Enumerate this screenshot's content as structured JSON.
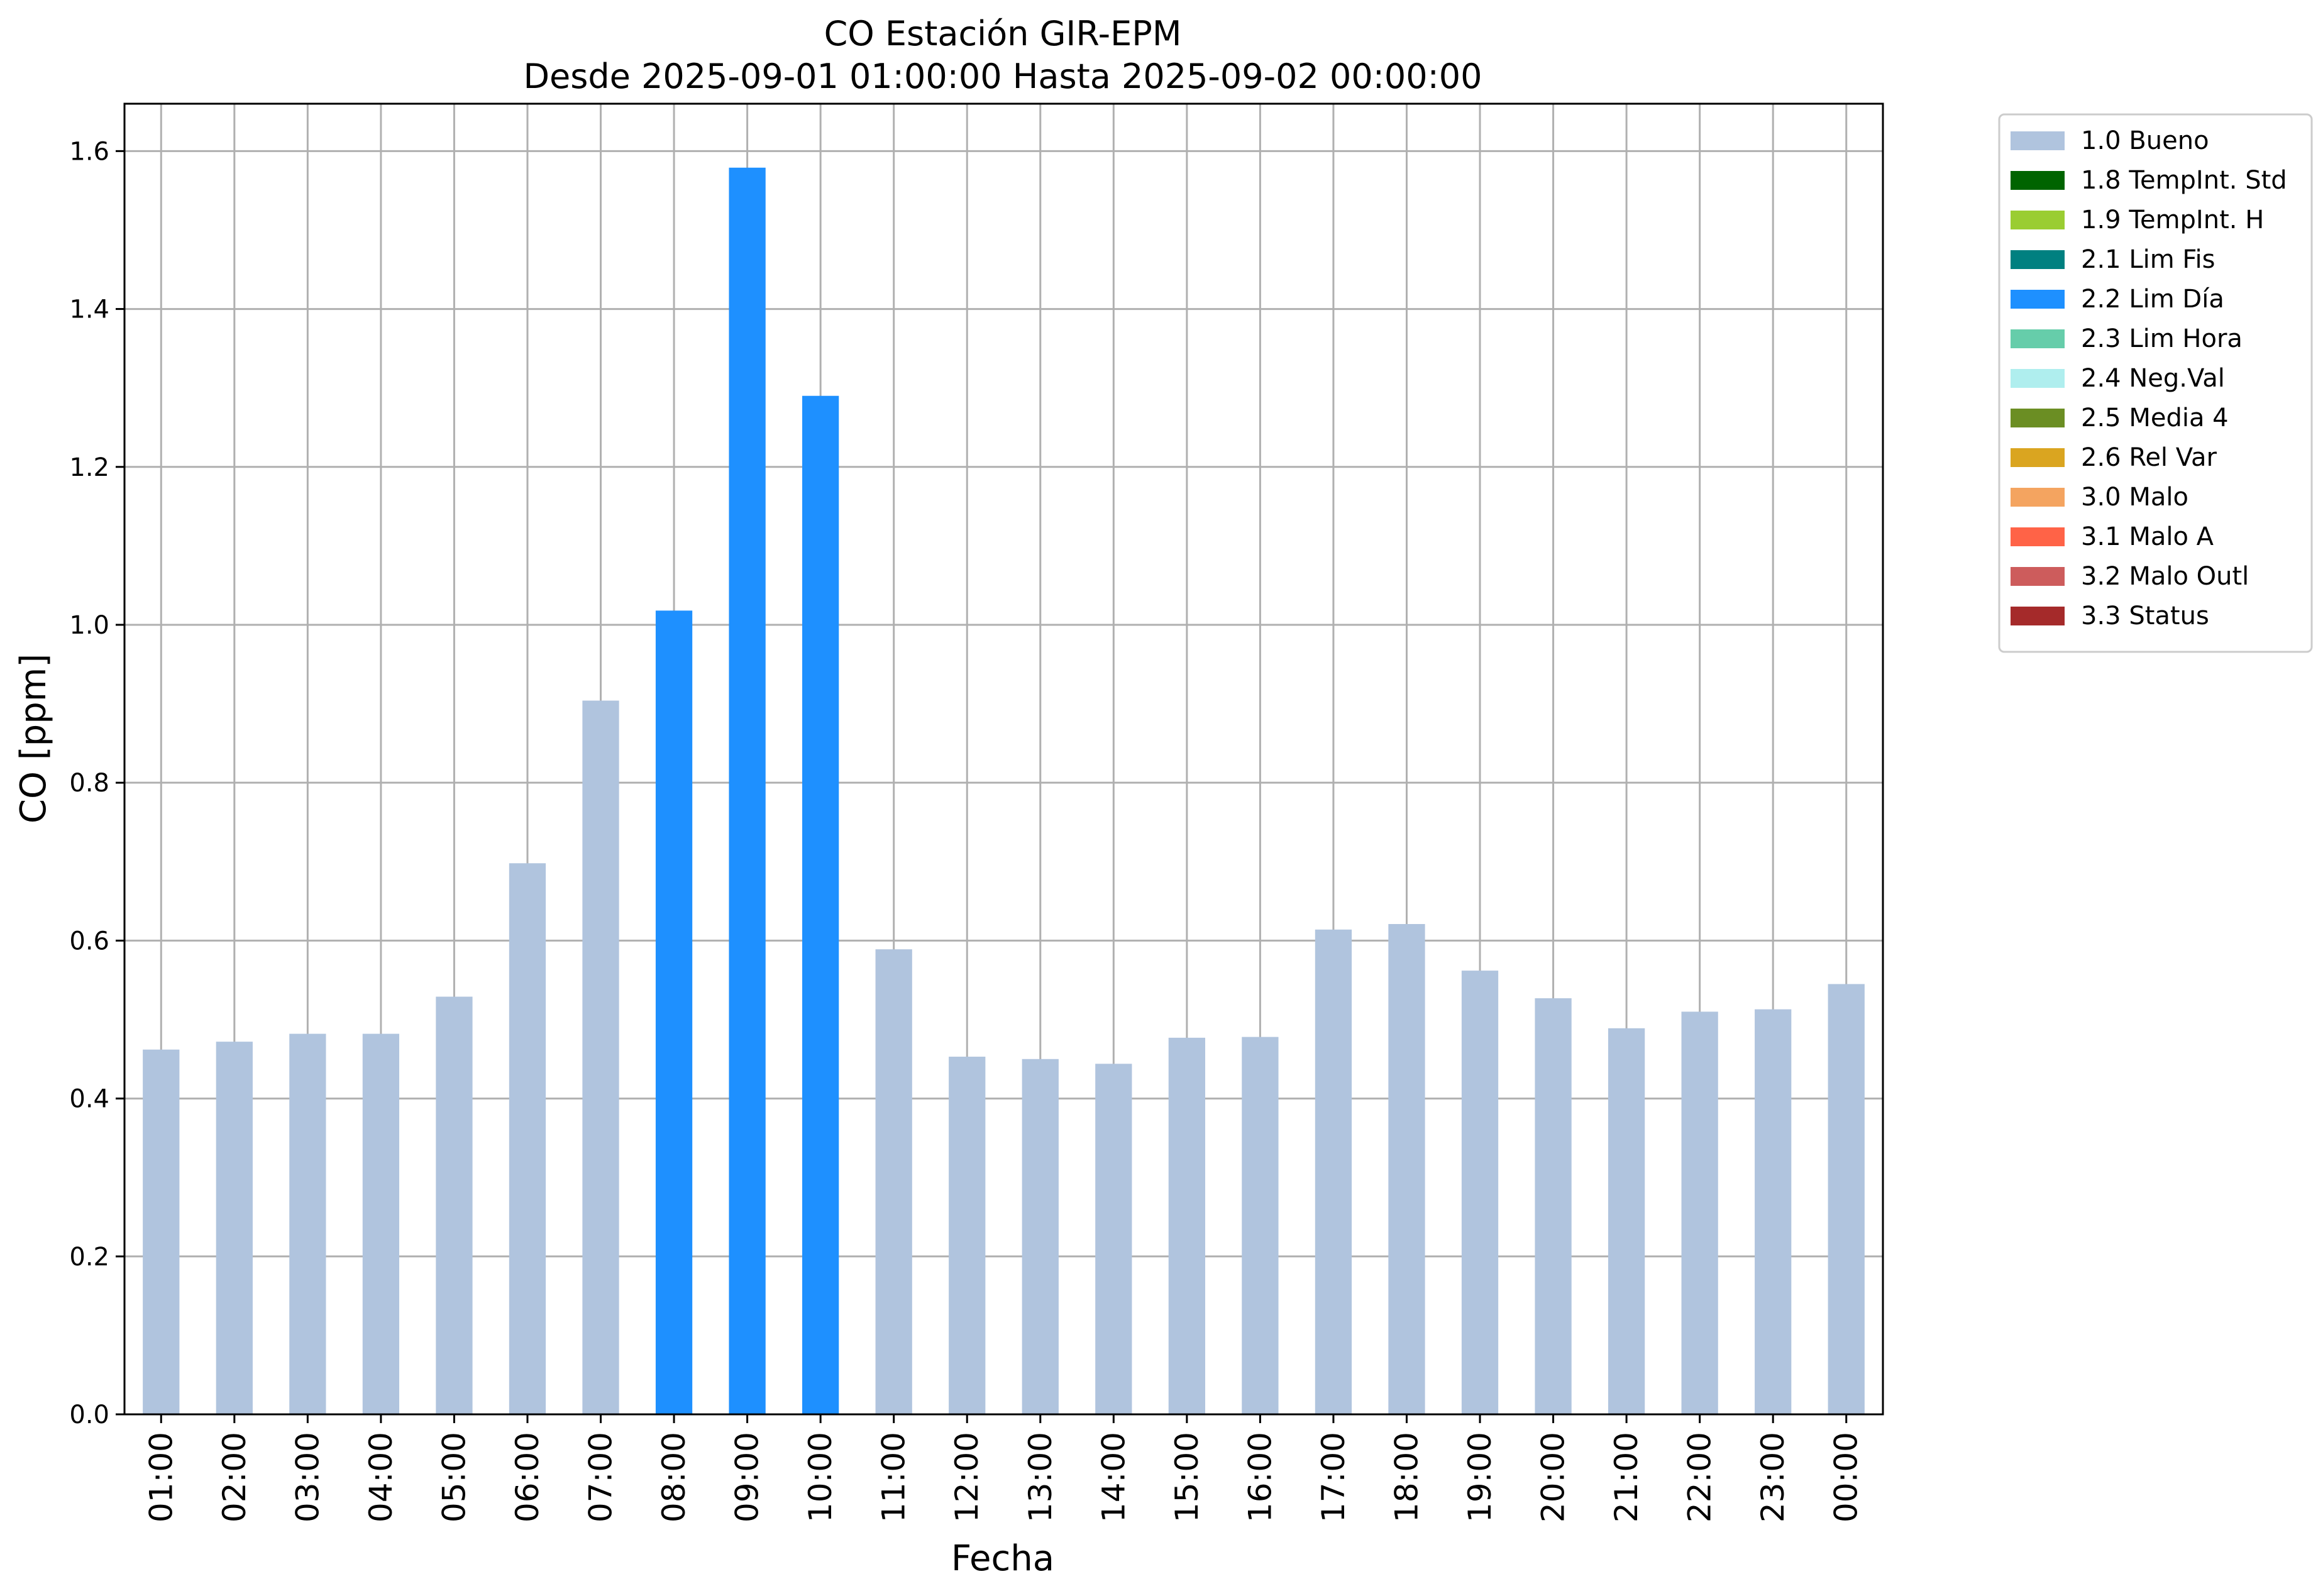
{
  "colors": {
    "background": "#ffffff",
    "grid": "#b0b0b0",
    "axis": "#000000"
  },
  "chart_data": {
    "type": "bar",
    "title": "CO Estación GIR-EPM",
    "subtitle": "Desde 2025-09-01 01:00:00 Hasta 2025-09-02 00:00:00",
    "xlabel": "Fecha",
    "ylabel": "CO [ppm]",
    "ylim": [
      0,
      1.66
    ],
    "yticks": [
      "0.0",
      "0.2",
      "0.4",
      "0.6",
      "0.8",
      "1.0",
      "1.2",
      "1.4",
      "1.6"
    ],
    "ytick_values": [
      0,
      0.2,
      0.4,
      0.6,
      0.8,
      1.0,
      1.2,
      1.4,
      1.6
    ],
    "grid": true,
    "legend_position": "outside top-right",
    "categories": [
      "01:00",
      "02:00",
      "03:00",
      "04:00",
      "05:00",
      "06:00",
      "07:00",
      "08:00",
      "09:00",
      "10:00",
      "11:00",
      "12:00",
      "13:00",
      "14:00",
      "15:00",
      "16:00",
      "17:00",
      "18:00",
      "19:00",
      "20:00",
      "21:00",
      "22:00",
      "23:00",
      "00:00"
    ],
    "values": [
      0.462,
      0.472,
      0.482,
      0.482,
      0.529,
      0.698,
      0.904,
      1.018,
      1.579,
      1.29,
      0.589,
      0.453,
      0.45,
      0.444,
      0.477,
      0.478,
      0.614,
      0.621,
      0.562,
      0.527,
      0.489,
      0.51,
      0.513,
      0.545
    ],
    "flags": [
      "1.0 Bueno",
      "1.0 Bueno",
      "1.0 Bueno",
      "1.0 Bueno",
      "1.0 Bueno",
      "1.0 Bueno",
      "1.0 Bueno",
      "2.2 Lim Día",
      "2.2 Lim Día",
      "2.2 Lim Día",
      "1.0 Bueno",
      "1.0 Bueno",
      "1.0 Bueno",
      "1.0 Bueno",
      "1.0 Bueno",
      "1.0 Bueno",
      "1.0 Bueno",
      "1.0 Bueno",
      "1.0 Bueno",
      "1.0 Bueno",
      "1.0 Bueno",
      "1.0 Bueno",
      "1.0 Bueno",
      "1.0 Bueno"
    ],
    "legend": [
      {
        "label": "1.0 Bueno",
        "color": "#b0c4de"
      },
      {
        "label": "1.8 TempInt. Std",
        "color": "#006400"
      },
      {
        "label": "1.9 TempInt. H",
        "color": "#9acd32"
      },
      {
        "label": "2.1 Lim Fis",
        "color": "#008080"
      },
      {
        "label": "2.2 Lim Día",
        "color": "#1e90ff"
      },
      {
        "label": "2.3 Lim Hora",
        "color": "#66cdaa"
      },
      {
        "label": "2.4 Neg.Val",
        "color": "#afeeee"
      },
      {
        "label": "2.5 Media 4",
        "color": "#6b8e23"
      },
      {
        "label": "2.6 Rel Var",
        "color": "#daa520"
      },
      {
        "label": "3.0 Malo",
        "color": "#f4a460"
      },
      {
        "label": "3.1 Malo A",
        "color": "#ff6347"
      },
      {
        "label": "3.2 Malo Outl",
        "color": "#cd5c5c"
      },
      {
        "label": "3.3 Status",
        "color": "#a52a2a"
      }
    ]
  }
}
